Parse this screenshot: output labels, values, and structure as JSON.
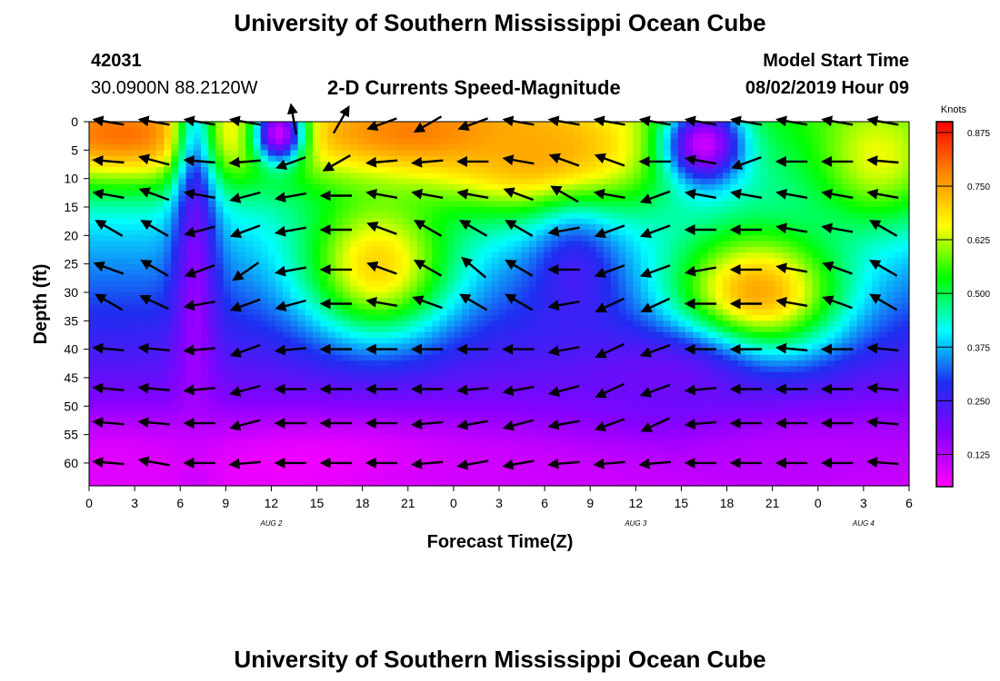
{
  "header": {
    "title": "University of Southern Mississippi Ocean Cube",
    "station_id": "42031",
    "station_coords": "30.0900N 88.2120W",
    "model_start_label": "Model Start Time",
    "model_start_value": "08/02/2019 Hour 09",
    "footer_title": "University of Southern Mississippi Ocean Cube"
  },
  "chart_data": {
    "type": "heatmap",
    "title": "2-D Currents Speed-Magnitude",
    "xlabel": "Forecast Time(Z)",
    "ylabel": "Depth (ft)",
    "x_tick_labels": [
      "0",
      "3",
      "6",
      "9",
      "12",
      "15",
      "18",
      "21",
      "0",
      "3",
      "6",
      "9",
      "12",
      "15",
      "18",
      "21",
      "0",
      "3",
      "6"
    ],
    "x_tick_hours": [
      0,
      3,
      6,
      9,
      12,
      15,
      18,
      21,
      24,
      27,
      30,
      33,
      36,
      39,
      42,
      45,
      48,
      51,
      54
    ],
    "x_range_hours": [
      0,
      54
    ],
    "date_labels": [
      {
        "text": "AUG 2",
        "hour": 12
      },
      {
        "text": "AUG 3",
        "hour": 36
      },
      {
        "text": "AUG 4",
        "hour": 51
      }
    ],
    "y_tick_labels": [
      "0",
      "5",
      "10",
      "15",
      "20",
      "25",
      "30",
      "35",
      "40",
      "45",
      "50",
      "55",
      "60"
    ],
    "y_tick_values": [
      0,
      5,
      10,
      15,
      20,
      25,
      30,
      35,
      40,
      45,
      50,
      55,
      60
    ],
    "y_range": [
      0,
      64
    ],
    "colorbar": {
      "unit": "Knots",
      "tick_labels": [
        "0.875",
        "0.750",
        "0.625",
        "0.500",
        "0.375",
        "0.250",
        "0.125"
      ],
      "tick_values": [
        0.875,
        0.75,
        0.625,
        0.5,
        0.375,
        0.25,
        0.125
      ],
      "range": [
        0.05,
        0.9
      ],
      "colors": [
        "#ff00ff",
        "#8800ff",
        "#1e2ef0",
        "#00ffff",
        "#00ff00",
        "#ffff00",
        "#ff8800",
        "#ff0000"
      ]
    },
    "speed_hotspots": [
      {
        "hour": 2,
        "depth": 2,
        "speed": 0.8,
        "sx": 6,
        "sy": 6
      },
      {
        "hour": 22,
        "depth": 2,
        "speed": 0.8,
        "sx": 8,
        "sy": 6
      },
      {
        "hour": 30,
        "depth": 6,
        "speed": 0.75,
        "sx": 5,
        "sy": 7
      },
      {
        "hour": 52,
        "depth": 6,
        "speed": 0.65,
        "sx": 3,
        "sy": 8
      },
      {
        "hour": 19,
        "depth": 25,
        "speed": 0.7,
        "sx": 3.5,
        "sy": 9
      },
      {
        "hour": 44,
        "depth": 30,
        "speed": 0.75,
        "sx": 4,
        "sy": 8
      },
      {
        "hour": 12.5,
        "depth": 2,
        "speed": 0.1,
        "sx": 1.2,
        "sy": 4
      },
      {
        "hour": 40.5,
        "depth": 4,
        "speed": 0.1,
        "sx": 1.8,
        "sy": 5
      },
      {
        "hour": 7,
        "depth": 45,
        "speed": 0.15,
        "sx": 1,
        "sy": 40
      },
      {
        "hour": 32,
        "depth": 28,
        "speed": 0.25,
        "sx": 2,
        "sy": 8
      },
      {
        "hour": 15,
        "depth": 60,
        "speed": 0.06,
        "sx": 7,
        "sy": 5
      },
      {
        "hour": 1,
        "depth": 60,
        "speed": 0.08,
        "sx": 4,
        "sy": 5
      },
      {
        "hour": 28,
        "depth": 62,
        "speed": 0.1,
        "sx": 7,
        "sy": 4
      },
      {
        "hour": 46,
        "depth": 60,
        "speed": 0.12,
        "sx": 7,
        "sy": 5
      },
      {
        "hour": 38,
        "depth": 46,
        "speed": 0.2,
        "sx": 4,
        "sy": 6
      }
    ],
    "vector_hours": [
      1.5,
      4.5,
      7.5,
      10.5,
      13.5,
      16.5,
      19.5,
      22.5,
      25.5,
      28.5,
      31.5,
      34.5,
      37.5,
      40.5,
      43.5,
      46.5,
      49.5,
      52.5
    ],
    "vector_depths": [
      0,
      7,
      13,
      19,
      26,
      32,
      40,
      47,
      53,
      60
    ],
    "vector_angles_deg": [
      [
        170,
        170,
        170,
        170,
        100,
        60,
        200,
        210,
        200,
        170,
        170,
        170,
        170,
        170,
        170,
        170,
        170,
        170
      ],
      [
        175,
        165,
        175,
        185,
        200,
        210,
        185,
        185,
        180,
        170,
        160,
        160,
        180,
        170,
        200,
        180,
        180,
        175
      ],
      [
        170,
        160,
        170,
        195,
        190,
        180,
        170,
        170,
        170,
        160,
        150,
        170,
        200,
        170,
        170,
        170,
        170,
        170
      ],
      [
        150,
        150,
        195,
        200,
        190,
        180,
        160,
        150,
        150,
        150,
        190,
        200,
        200,
        180,
        180,
        170,
        170,
        150
      ],
      [
        160,
        150,
        200,
        215,
        190,
        180,
        160,
        150,
        140,
        150,
        180,
        200,
        200,
        190,
        180,
        170,
        160,
        150
      ],
      [
        150,
        155,
        190,
        200,
        195,
        180,
        170,
        160,
        150,
        150,
        190,
        205,
        205,
        180,
        180,
        170,
        160,
        150
      ],
      [
        175,
        175,
        185,
        200,
        185,
        180,
        180,
        180,
        180,
        180,
        190,
        205,
        200,
        180,
        180,
        175,
        180,
        175
      ],
      [
        175,
        175,
        185,
        195,
        180,
        180,
        180,
        180,
        185,
        190,
        195,
        205,
        200,
        185,
        180,
        180,
        180,
        175
      ],
      [
        175,
        175,
        180,
        195,
        180,
        180,
        180,
        185,
        190,
        195,
        190,
        200,
        205,
        185,
        180,
        180,
        180,
        175
      ],
      [
        175,
        170,
        180,
        185,
        180,
        180,
        180,
        185,
        190,
        190,
        185,
        185,
        185,
        180,
        180,
        180,
        180,
        175
      ]
    ]
  }
}
